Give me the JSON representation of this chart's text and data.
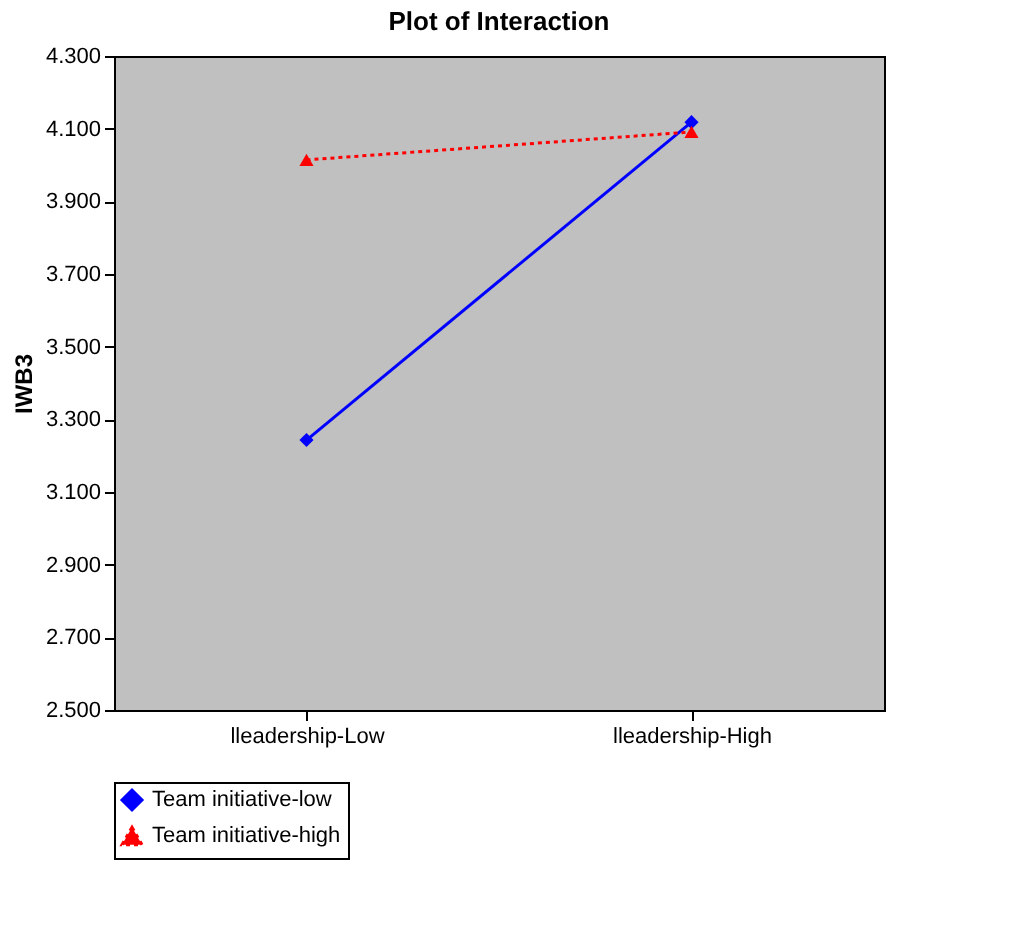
{
  "chart_data": {
    "type": "line",
    "title": "Plot of Interaction",
    "ylabel": "IWB3",
    "categories": [
      "lleadership-Low",
      "lleadership-High"
    ],
    "series": [
      {
        "name": "Team initiative-low",
        "color": "#0000ff",
        "values": [
          3.243,
          4.118
        ],
        "marker": "diamond",
        "line_style": "solid"
      },
      {
        "name": "Team initiative-high",
        "color": "#ff0000",
        "values": [
          4.014,
          4.091
        ],
        "marker": "triangle",
        "line_style": "dotted"
      }
    ],
    "ylim": [
      2.5,
      4.3
    ],
    "yticks": [
      {
        "value": 2.5,
        "label": "2.500"
      },
      {
        "value": 2.7,
        "label": "2.700"
      },
      {
        "value": 2.9,
        "label": "2.900"
      },
      {
        "value": 3.1,
        "label": "3.100"
      },
      {
        "value": 3.3,
        "label": "3.300"
      },
      {
        "value": 3.5,
        "label": "3.500"
      },
      {
        "value": 3.7,
        "label": "3.700"
      },
      {
        "value": 3.9,
        "label": "3.900"
      },
      {
        "value": 4.1,
        "label": "4.100"
      },
      {
        "value": 4.3,
        "label": "4.300"
      }
    ],
    "grid": false,
    "legend": "bottom"
  }
}
